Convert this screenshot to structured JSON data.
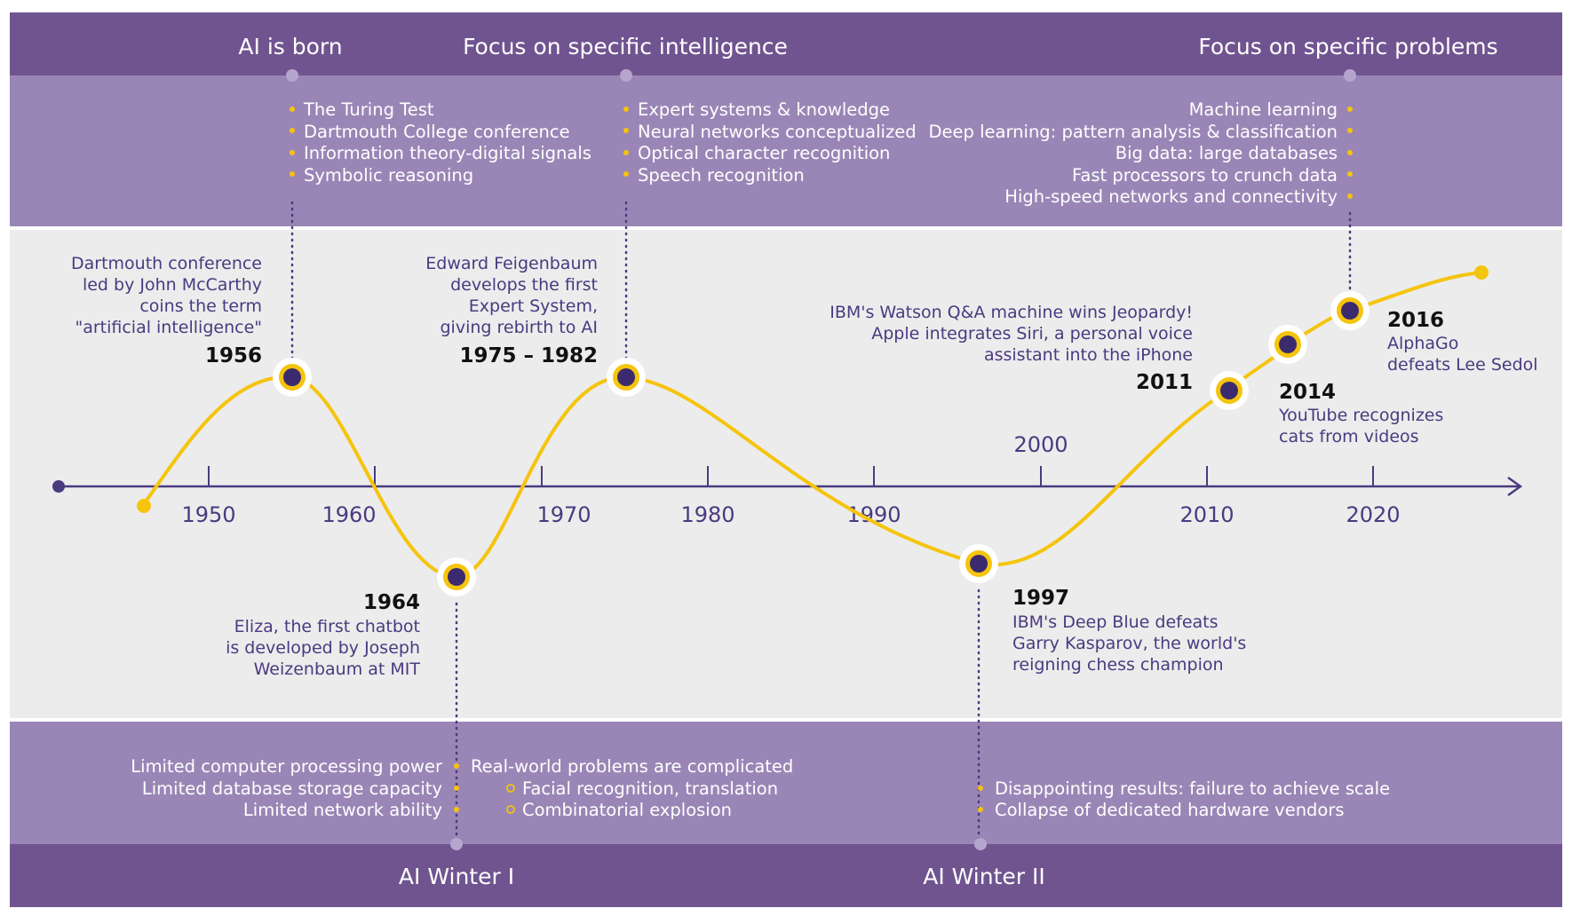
{
  "top_headers": {
    "ai_born": "AI is born",
    "specific_intelligence": "Focus on specific intelligence",
    "specific_problems": "Focus on specific problems"
  },
  "top_bullets": {
    "ai_born": [
      "The Turing Test",
      "Dartmouth College conference",
      "Information theory-digital signals",
      "Symbolic reasoning"
    ],
    "specific_intelligence": [
      "Expert systems & knowledge",
      "Neural networks conceptualized",
      "Optical character recognition",
      "Speech recognition"
    ],
    "specific_problems": [
      "Machine learning",
      "Deep learning: pattern analysis & classification",
      "Big data: large databases",
      "Fast processors to crunch data",
      "High-speed networks and connectivity"
    ]
  },
  "timeline": {
    "ticks": [
      "1950",
      "1960",
      "1970",
      "1980",
      "1990",
      "2000",
      "2010",
      "2020"
    ],
    "events": {
      "e1956": {
        "year": "1956",
        "desc": [
          "Dartmouth conference",
          "led by John McCarthy",
          "coins the term",
          "\"artificial intelligence\""
        ]
      },
      "e1964": {
        "year": "1964",
        "desc": [
          "Eliza, the first chatbot",
          "is developed by Joseph",
          "Weizenbaum at MIT"
        ]
      },
      "e1975": {
        "year": "1975 – 1982",
        "desc": [
          "Edward Feigenbaum",
          "develops the first",
          "Expert System,",
          "giving rebirth to AI"
        ]
      },
      "e1997": {
        "year": "1997",
        "desc": [
          "IBM's Deep Blue defeats",
          "Garry Kasparov, the world's",
          "reigning chess champion"
        ]
      },
      "e2011": {
        "year": "2011",
        "desc": [
          "IBM's Watson Q&A machine wins Jeopardy!",
          "Apple integrates Siri, a personal voice",
          "assistant into the iPhone"
        ]
      },
      "e2014": {
        "year": "2014",
        "desc": [
          "YouTube recognizes",
          "cats from videos"
        ]
      },
      "e2016": {
        "year": "2016",
        "desc": [
          "AlphaGo",
          "defeats Lee Sedol"
        ]
      }
    }
  },
  "bottom_bullets": {
    "winter1_causes": [
      "Limited computer processing power",
      "Limited database storage capacity",
      "Limited network ability"
    ],
    "winter1_problem": "Real-world problems are complicated",
    "winter1_sub": [
      "Facial recognition, translation",
      "Combinatorial explosion"
    ],
    "winter2": [
      "Disappointing results: failure to achieve scale",
      "Collapse of dedicated hardware vendors"
    ]
  },
  "bottom_headers": {
    "winter1": "AI Winter I",
    "winter2": "AI Winter II"
  },
  "colors": {
    "dark_purple": "#705490",
    "light_purple": "#9a86b6",
    "band_gray": "#ececec",
    "curve_yellow": "#f5c40d",
    "axis_purple": "#4a3a80",
    "node_dark": "#3c2a6e"
  }
}
